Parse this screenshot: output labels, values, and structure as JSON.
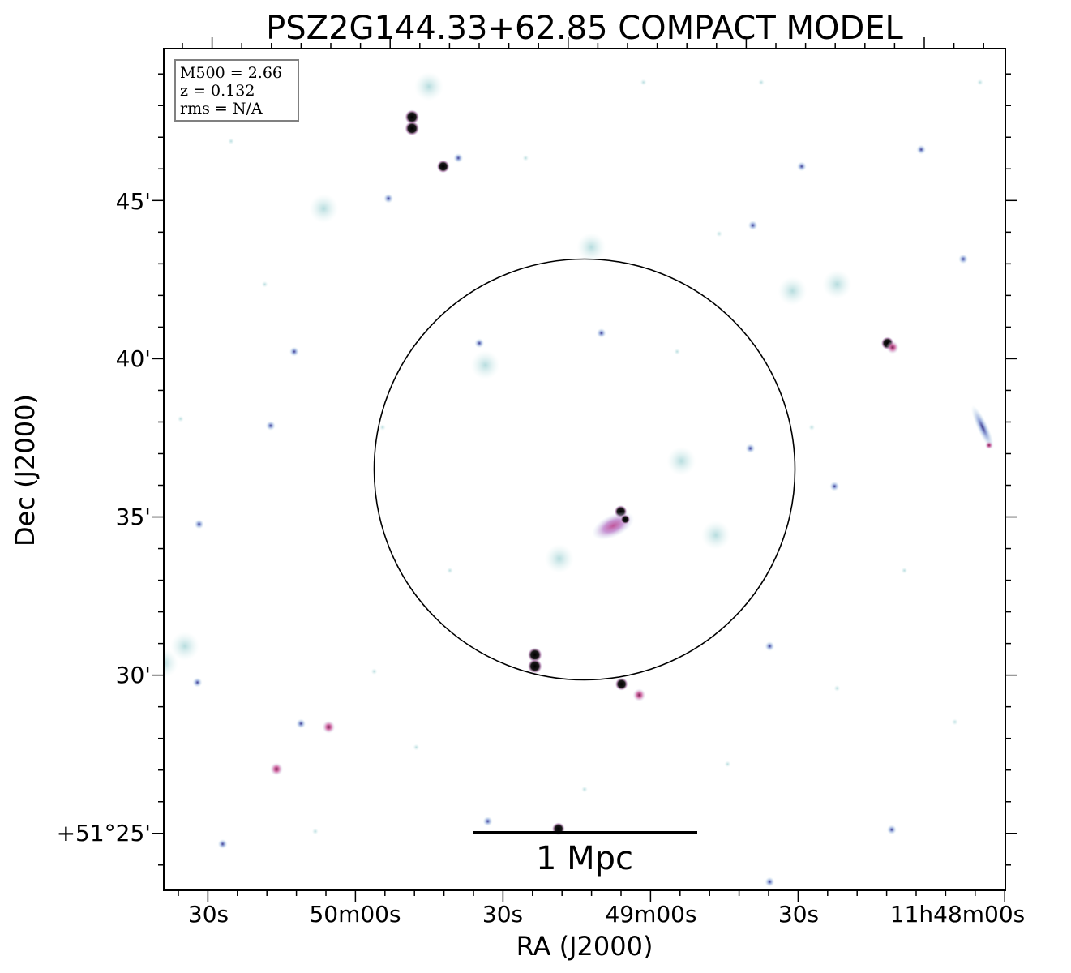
{
  "chart_data": {
    "type": "scatter",
    "title": "PSZ2G144.33+62.85 COMPACT MODEL",
    "xlabel": "RA (J2000)",
    "ylabel": "Dec (J2000)",
    "x_ticks": [
      "30s",
      "50m00s",
      "30s",
      "49m00s",
      "30s",
      "11h48m00s"
    ],
    "y_ticks": [
      "+51°25'",
      "30'",
      "35'",
      "40'",
      "45'"
    ],
    "y_tick_values_arcmin": [
      25,
      30,
      35,
      40,
      45
    ],
    "ylim_arcmin": [
      23.2,
      49.8
    ],
    "info_box": [
      "M500 = 2.66",
      "z = 0.132",
      "rms = N/A"
    ],
    "scale_bar": {
      "label": "1 Mpc"
    },
    "aperture_circle": {
      "center_dec_arcmin": 36.5,
      "radius_arcmin": 6.65
    },
    "sources": [
      {
        "kind": "compact-dark",
        "pair": true,
        "pos": [
          0.295,
          0.088
        ]
      },
      {
        "kind": "compact-dark",
        "pair": false,
        "pos": [
          0.332,
          0.14
        ]
      },
      {
        "kind": "compact-dark",
        "pair": true,
        "pos": [
          0.441,
          0.727
        ]
      },
      {
        "kind": "compact-dark",
        "pair": false,
        "pos": [
          0.544,
          0.755
        ]
      },
      {
        "kind": "compact-dark",
        "pair": false,
        "pos": [
          0.543,
          0.55
        ]
      },
      {
        "kind": "compact-dark",
        "pair": false,
        "pos": [
          0.86,
          0.35
        ]
      },
      {
        "kind": "compact-dark",
        "pair": false,
        "pos": [
          0.469,
          0.927
        ]
      },
      {
        "kind": "central-extended",
        "pos": [
          0.534,
          0.567
        ]
      },
      {
        "kind": "elongated",
        "pos": [
          0.973,
          0.45
        ]
      },
      {
        "kind": "pink",
        "pos": [
          0.196,
          0.806
        ]
      },
      {
        "kind": "pink",
        "pos": [
          0.134,
          0.856
        ]
      },
      {
        "kind": "pink",
        "pos": [
          0.565,
          0.768
        ]
      },
      {
        "kind": "pink",
        "pos": [
          0.866,
          0.355
        ]
      },
      {
        "kind": "diffuse",
        "pos": [
          0.747,
          0.288
        ]
      },
      {
        "kind": "diffuse",
        "pos": [
          0.8,
          0.28
        ]
      },
      {
        "kind": "diffuse",
        "pos": [
          0.0,
          0.73
        ]
      },
      {
        "kind": "diffuse",
        "pos": [
          0.025,
          0.71
        ]
      },
      {
        "kind": "diffuse",
        "pos": [
          0.315,
          0.045
        ]
      },
      {
        "kind": "diffuse",
        "pos": [
          0.47,
          0.606
        ]
      },
      {
        "kind": "diffuse",
        "pos": [
          0.615,
          0.49
        ]
      },
      {
        "kind": "diffuse",
        "pos": [
          0.19,
          0.19
        ]
      },
      {
        "kind": "diffuse",
        "pos": [
          0.382,
          0.376
        ]
      },
      {
        "kind": "diffuse",
        "pos": [
          0.508,
          0.236
        ]
      },
      {
        "kind": "diffuse",
        "pos": [
          0.656,
          0.578
        ]
      },
      {
        "kind": "small-blue",
        "pos": [
          0.155,
          0.36
        ]
      },
      {
        "kind": "small-blue",
        "pos": [
          0.127,
          0.448
        ]
      },
      {
        "kind": "small-blue",
        "pos": [
          0.04,
          0.753
        ]
      },
      {
        "kind": "small-blue",
        "pos": [
          0.163,
          0.802
        ]
      },
      {
        "kind": "small-blue",
        "pos": [
          0.07,
          0.945
        ]
      },
      {
        "kind": "small-blue",
        "pos": [
          0.267,
          0.178
        ]
      },
      {
        "kind": "small-blue",
        "pos": [
          0.697,
          0.475
        ]
      },
      {
        "kind": "small-blue",
        "pos": [
          0.7,
          0.21
        ]
      },
      {
        "kind": "small-blue",
        "pos": [
          0.797,
          0.52
        ]
      },
      {
        "kind": "small-blue",
        "pos": [
          0.72,
          0.71
        ]
      },
      {
        "kind": "small-blue",
        "pos": [
          0.865,
          0.928
        ]
      },
      {
        "kind": "small-blue",
        "pos": [
          0.385,
          0.918
        ]
      },
      {
        "kind": "small-blue",
        "pos": [
          0.72,
          0.99
        ]
      },
      {
        "kind": "small-blue",
        "pos": [
          0.042,
          0.565
        ]
      },
      {
        "kind": "small-blue",
        "pos": [
          0.35,
          0.13
        ]
      },
      {
        "kind": "small-blue",
        "pos": [
          0.758,
          0.14
        ]
      },
      {
        "kind": "small-blue",
        "pos": [
          0.95,
          0.25
        ]
      },
      {
        "kind": "small-blue",
        "pos": [
          0.375,
          0.35
        ]
      },
      {
        "kind": "small-blue",
        "pos": [
          0.52,
          0.338
        ]
      },
      {
        "kind": "small-blue",
        "pos": [
          0.9,
          0.12
        ]
      },
      {
        "kind": "faint",
        "pos": [
          0.08,
          0.11
        ]
      },
      {
        "kind": "faint",
        "pos": [
          0.12,
          0.28
        ]
      },
      {
        "kind": "faint",
        "pos": [
          0.26,
          0.45
        ]
      },
      {
        "kind": "faint",
        "pos": [
          0.34,
          0.62
        ]
      },
      {
        "kind": "faint",
        "pos": [
          0.61,
          0.36
        ]
      },
      {
        "kind": "faint",
        "pos": [
          0.66,
          0.22
        ]
      },
      {
        "kind": "faint",
        "pos": [
          0.77,
          0.45
        ]
      },
      {
        "kind": "faint",
        "pos": [
          0.88,
          0.62
        ]
      },
      {
        "kind": "faint",
        "pos": [
          0.94,
          0.8
        ]
      },
      {
        "kind": "faint",
        "pos": [
          0.25,
          0.74
        ]
      },
      {
        "kind": "faint",
        "pos": [
          0.5,
          0.88
        ]
      },
      {
        "kind": "faint",
        "pos": [
          0.67,
          0.85
        ]
      },
      {
        "kind": "faint",
        "pos": [
          0.18,
          0.93
        ]
      },
      {
        "kind": "faint",
        "pos": [
          0.57,
          0.04
        ]
      },
      {
        "kind": "faint",
        "pos": [
          0.71,
          0.04
        ]
      },
      {
        "kind": "faint",
        "pos": [
          0.43,
          0.13
        ]
      },
      {
        "kind": "faint",
        "pos": [
          0.02,
          0.44
        ]
      },
      {
        "kind": "faint",
        "pos": [
          0.97,
          0.04
        ]
      },
      {
        "kind": "faint",
        "pos": [
          0.8,
          0.76
        ]
      },
      {
        "kind": "faint",
        "pos": [
          0.3,
          0.83
        ]
      }
    ]
  }
}
